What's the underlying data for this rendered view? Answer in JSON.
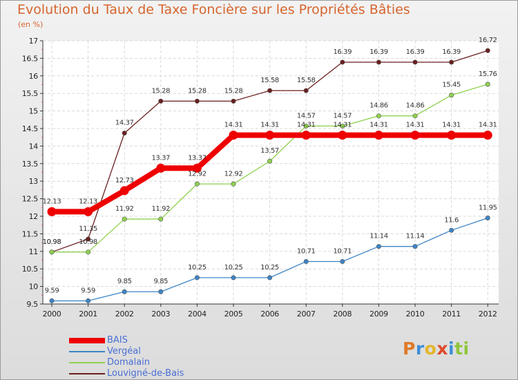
{
  "title": "Evolution du Taux de Taxe Foncière sur les Propriétés Bâties",
  "unit": "(en %)",
  "logo": {
    "text": "Proxiti",
    "colors": [
      "#e07a28",
      "#3d8fd6",
      "#e4b62a",
      "#e04a2a",
      "#3d8fd6",
      "#8fc63c",
      "#8fc63c"
    ]
  },
  "chart_data": {
    "type": "line",
    "categories": [
      "2000",
      "2001",
      "2002",
      "2003",
      "2004",
      "2005",
      "2006",
      "2007",
      "2008",
      "2009",
      "2010",
      "2011",
      "2012"
    ],
    "ylim": [
      9.5,
      17
    ],
    "yticks": [
      "9.5",
      "10",
      "10.5",
      "11",
      "11.5",
      "12",
      "12.5",
      "13",
      "13.5",
      "14",
      "14.5",
      "15",
      "15.5",
      "16",
      "16.5",
      "17"
    ],
    "grid": true,
    "legend_position": "bottom-left",
    "series": [
      {
        "name": "BAIS",
        "color": "#ee0000",
        "values": [
          12.13,
          12.13,
          12.73,
          13.37,
          13.37,
          14.31,
          14.31,
          14.31,
          14.31,
          14.31,
          14.31,
          14.31,
          14.31
        ],
        "labels": [
          "12.13",
          "12.13",
          "12.73",
          "13.37",
          "13.37",
          "14.31",
          "14.31",
          "14.31",
          "14.31",
          "14.31",
          "14.31",
          "14.31",
          "14.31"
        ]
      },
      {
        "name": "Vergéal",
        "color": "#3d85c6",
        "values": [
          9.59,
          9.59,
          9.85,
          9.85,
          10.25,
          10.25,
          10.25,
          10.71,
          10.71,
          11.14,
          11.14,
          11.6,
          11.95
        ],
        "labels": [
          "9.59",
          "9.59",
          "9.85",
          "9.85",
          "10.25",
          "10.25",
          "10.25",
          "10.71",
          "10.71",
          "11.14",
          "11.14",
          "11.6",
          "11.95"
        ]
      },
      {
        "name": "Domalain",
        "color": "#8fd14f",
        "values": [
          10.98,
          10.98,
          11.92,
          11.92,
          12.92,
          12.92,
          13.57,
          14.57,
          14.57,
          14.86,
          14.86,
          15.45,
          15.76
        ],
        "labels": [
          "10.98",
          "10.98",
          "11.92",
          "11.92",
          "12.92",
          "12.92",
          "13.57",
          "14.57",
          "14.57",
          "14.86",
          "14.86",
          "15.45",
          "15.76"
        ]
      },
      {
        "name": "Louvigné-de-Bais",
        "color": "#6b1f1f",
        "values": [
          10.98,
          11.35,
          14.37,
          15.28,
          15.28,
          15.28,
          15.58,
          15.58,
          16.39,
          16.39,
          16.39,
          16.39,
          16.72
        ],
        "labels": [
          "10.98",
          "11.35",
          "14.37",
          "15.28",
          "15.28",
          "15.28",
          "15.58",
          "15.58",
          "16.39",
          "16.39",
          "16.39",
          "16.39",
          "16.72"
        ]
      }
    ]
  }
}
